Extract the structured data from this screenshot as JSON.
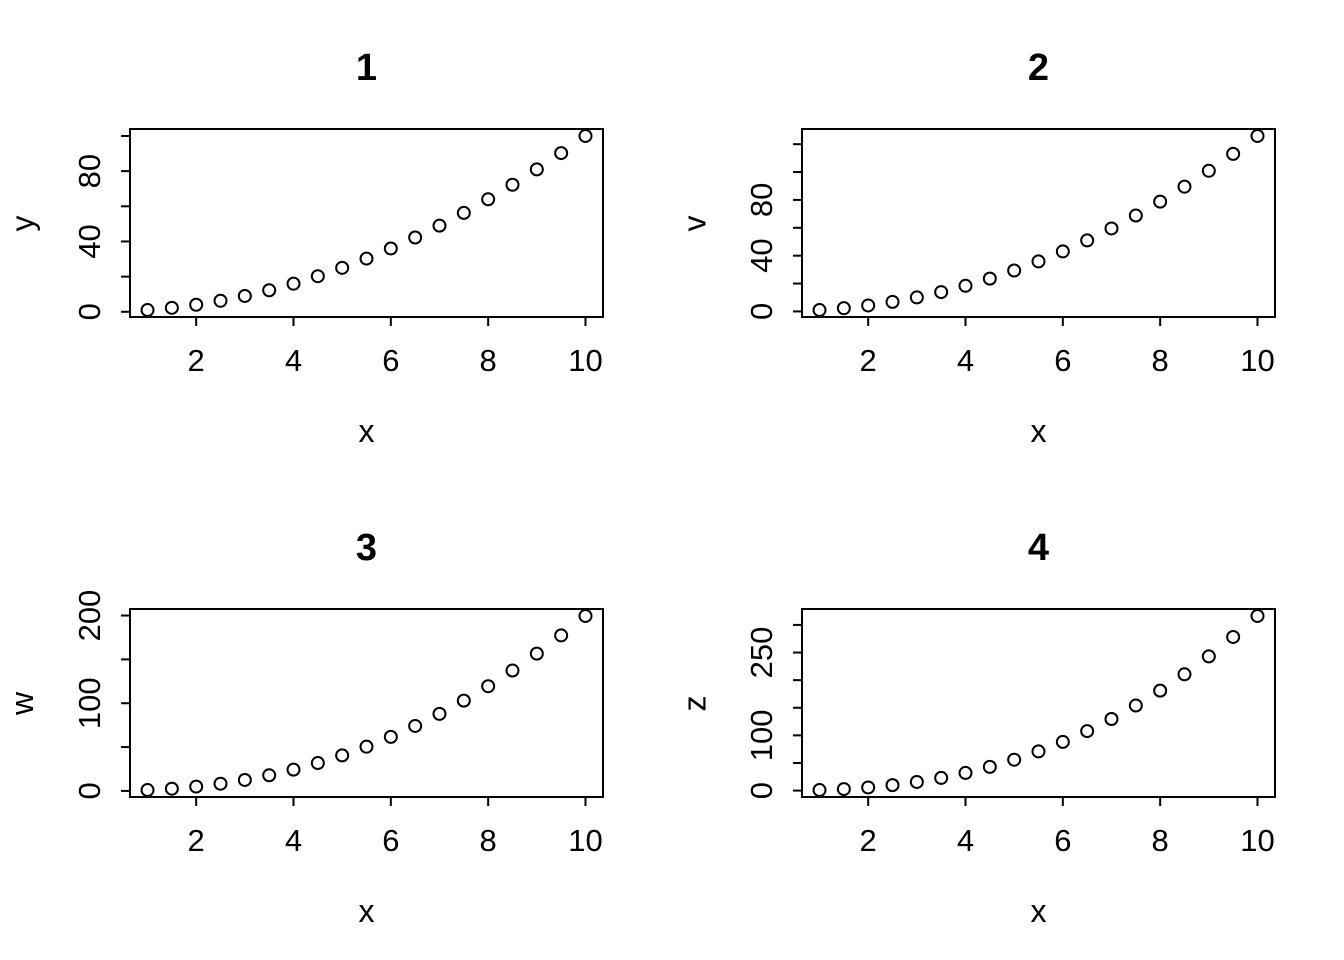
{
  "figure": {
    "background_color": "#ffffff",
    "foreground_color": "#000000",
    "layout": "2x2-grid-of-r-base-plots"
  },
  "chart_data": [
    {
      "type": "scatter",
      "title": "1",
      "xlabel": "x",
      "ylabel": "y",
      "marker": "open-circle",
      "marker_color": "#000000",
      "grid": false,
      "legend": null,
      "x": [
        1,
        1.5,
        2,
        2.5,
        3,
        3.5,
        4,
        4.5,
        5,
        5.5,
        6,
        6.5,
        7,
        7.5,
        8,
        8.5,
        9,
        9.5,
        10
      ],
      "y": [
        1,
        2.25,
        4,
        6.25,
        9,
        12.25,
        16,
        20.25,
        25,
        30.25,
        36,
        42.25,
        49,
        56.25,
        64,
        72.25,
        81,
        90.25,
        100
      ],
      "xlim": [
        0.64,
        10.36
      ],
      "ylim": [
        -2.96,
        103.96
      ],
      "xticks": [
        2,
        4,
        6,
        8,
        10
      ],
      "xtick_labels": [
        "2",
        "4",
        "6",
        "8",
        "10"
      ],
      "yticks": [
        0,
        20,
        40,
        60,
        80,
        100
      ],
      "ytick_labels": [
        "0",
        "",
        "40",
        "",
        "80",
        ""
      ]
    },
    {
      "type": "scatter",
      "title": "2",
      "xlabel": "x",
      "ylabel": "v",
      "marker": "open-circle",
      "marker_color": "#000000",
      "grid": false,
      "legend": null,
      "x": [
        1,
        1.5,
        2,
        2.5,
        3,
        3.5,
        4,
        4.5,
        5,
        5.5,
        6,
        6.5,
        7,
        7.5,
        8,
        8.5,
        9,
        9.5,
        10
      ],
      "y": [
        1,
        2.34,
        4.29,
        6.85,
        10.05,
        13.89,
        18.38,
        23.53,
        29.37,
        35.87,
        43.06,
        50.95,
        59.53,
        68.81,
        78.79,
        89.5,
        100.9,
        113.04,
        125.89
      ],
      "xlim": [
        0.64,
        10.36
      ],
      "ylim": [
        -4.0,
        130.89
      ],
      "xticks": [
        2,
        4,
        6,
        8,
        10
      ],
      "xtick_labels": [
        "2",
        "4",
        "6",
        "8",
        "10"
      ],
      "yticks": [
        0,
        20,
        40,
        60,
        80,
        100,
        120
      ],
      "ytick_labels": [
        "0",
        "",
        "40",
        "",
        "80",
        "",
        ""
      ]
    },
    {
      "type": "scatter",
      "title": "3",
      "xlabel": "x",
      "ylabel": "w",
      "marker": "open-circle",
      "marker_color": "#000000",
      "grid": false,
      "legend": null,
      "x": [
        1,
        1.5,
        2,
        2.5,
        3,
        3.5,
        4,
        4.5,
        5,
        5.5,
        6,
        6.5,
        7,
        7.5,
        8,
        8.5,
        9,
        9.5,
        10
      ],
      "y": [
        1,
        2.54,
        4.92,
        8.23,
        12.51,
        17.84,
        24.25,
        31.8,
        40.52,
        50.45,
        61.62,
        74.08,
        87.85,
        102.96,
        119.43,
        137.3,
        156.59,
        177.34,
        199.53
      ],
      "xlim": [
        0.64,
        10.36
      ],
      "ylim": [
        -6.94,
        207.47
      ],
      "xticks": [
        2,
        4,
        6,
        8,
        10
      ],
      "xtick_labels": [
        "2",
        "4",
        "6",
        "8",
        "10"
      ],
      "yticks": [
        0,
        50,
        100,
        150,
        200
      ],
      "ytick_labels": [
        "0",
        "",
        "100",
        "",
        "200"
      ]
    },
    {
      "type": "scatter",
      "title": "4",
      "xlabel": "x",
      "ylabel": "z",
      "marker": "open-circle",
      "marker_color": "#000000",
      "grid": false,
      "legend": null,
      "x": [
        1,
        1.5,
        2,
        2.5,
        3,
        3.5,
        4,
        4.5,
        5,
        5.5,
        6,
        6.5,
        7,
        7.5,
        8,
        8.5,
        9,
        9.5,
        10
      ],
      "y": [
        1,
        2.76,
        5.66,
        9.88,
        15.59,
        22.92,
        32,
        42.96,
        55.9,
        70.94,
        88.18,
        107.72,
        129.64,
        154.05,
        181.02,
        210.64,
        243,
        278.17,
        316.23
      ],
      "xlim": [
        0.64,
        10.36
      ],
      "ylim": [
        -11.61,
        328.84
      ],
      "xticks": [
        2,
        4,
        6,
        8,
        10
      ],
      "xtick_labels": [
        "2",
        "4",
        "6",
        "8",
        "10"
      ],
      "yticks": [
        0,
        50,
        100,
        150,
        200,
        250,
        300
      ],
      "ytick_labels": [
        "0",
        "",
        "100",
        "",
        "",
        "250",
        ""
      ]
    }
  ]
}
